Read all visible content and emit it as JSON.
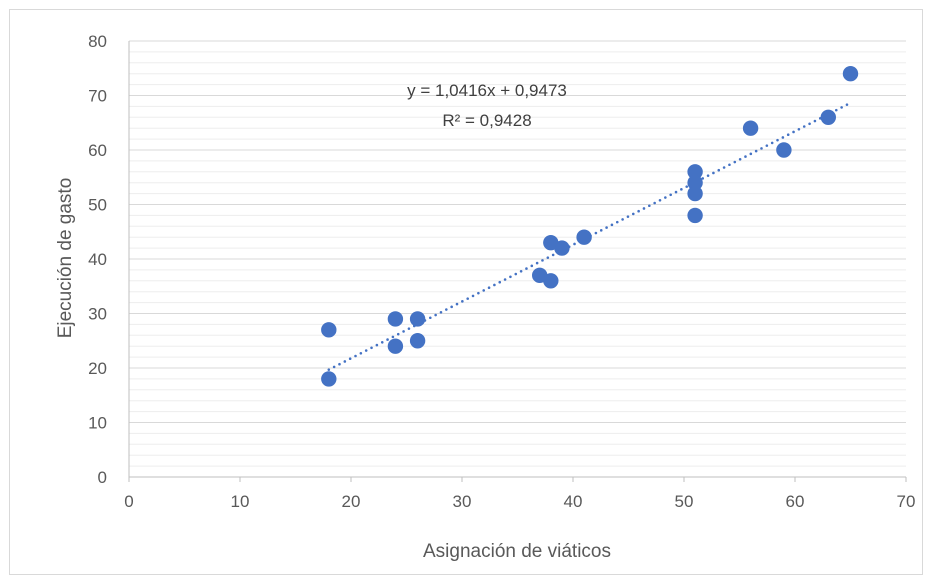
{
  "chart_data": {
    "type": "scatter",
    "xlabel": "Asignación de viáticos",
    "ylabel": "Ejecución de gasto",
    "xlim": [
      0,
      70
    ],
    "ylim": [
      0,
      80
    ],
    "xticks": [
      0,
      10,
      20,
      30,
      40,
      50,
      60,
      70
    ],
    "yticks": [
      0,
      10,
      20,
      30,
      40,
      50,
      60,
      70,
      80
    ],
    "grid": true,
    "minor_grid": true,
    "marker_color": "#4472c4",
    "trendline_color": "#4472c4",
    "points": [
      {
        "x": 18,
        "y": 27
      },
      {
        "x": 18,
        "y": 18
      },
      {
        "x": 24,
        "y": 29
      },
      {
        "x": 24,
        "y": 24
      },
      {
        "x": 26,
        "y": 29
      },
      {
        "x": 26,
        "y": 25
      },
      {
        "x": 37,
        "y": 37
      },
      {
        "x": 38,
        "y": 43
      },
      {
        "x": 38,
        "y": 36
      },
      {
        "x": 39,
        "y": 42
      },
      {
        "x": 41,
        "y": 44
      },
      {
        "x": 51,
        "y": 56
      },
      {
        "x": 51,
        "y": 54
      },
      {
        "x": 51,
        "y": 52
      },
      {
        "x": 51,
        "y": 48
      },
      {
        "x": 56,
        "y": 64
      },
      {
        "x": 59,
        "y": 60
      },
      {
        "x": 63,
        "y": 66
      },
      {
        "x": 65,
        "y": 74
      }
    ],
    "trendline": {
      "type": "linear",
      "slope": 1.0416,
      "intercept": 0.9473,
      "x_range": [
        18,
        65
      ],
      "style": "dotted"
    },
    "annotations": {
      "equation": "y = 1,0416x + 0,9473",
      "r_squared": "R² = 0,9428"
    }
  }
}
